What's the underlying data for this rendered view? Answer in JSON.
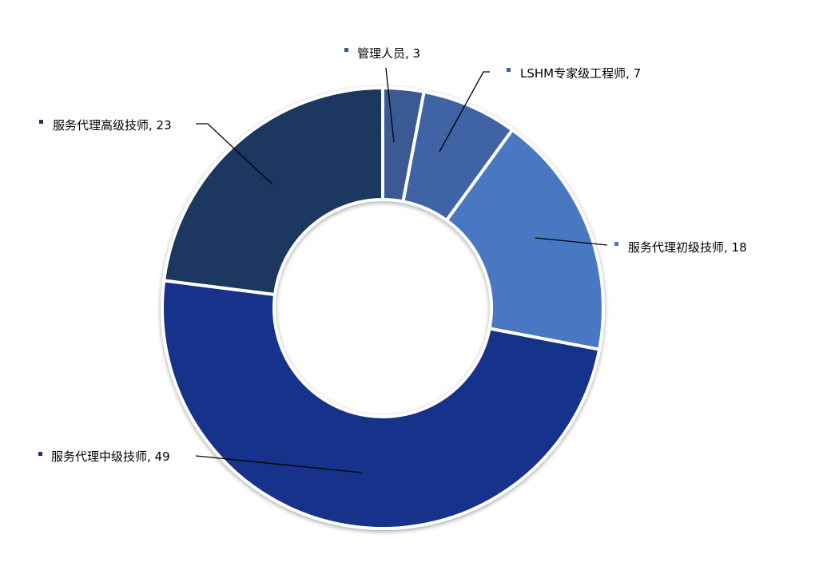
{
  "chart_data": {
    "type": "pie",
    "donut": true,
    "title": "",
    "categories": [
      "管理人员",
      "LSHM专家级工程师",
      "服务代理初级技师",
      "服务代理中级技师",
      "服务代理高级技师"
    ],
    "values": [
      3,
      7,
      18,
      49,
      23
    ],
    "labels": [
      "管理人员, 3",
      "LSHM专家级工程师, 7",
      "服务代理初级技师, 18",
      "服务代理中级技师, 49",
      "服务代理高级技师, 23"
    ],
    "colors": [
      "#3a5a94",
      "#3f64a5",
      "#4a78c2",
      "#13308a",
      "#1f3760"
    ],
    "start_angle": "top",
    "direction": "clockwise",
    "legend": "none (data labels with leader lines)"
  }
}
